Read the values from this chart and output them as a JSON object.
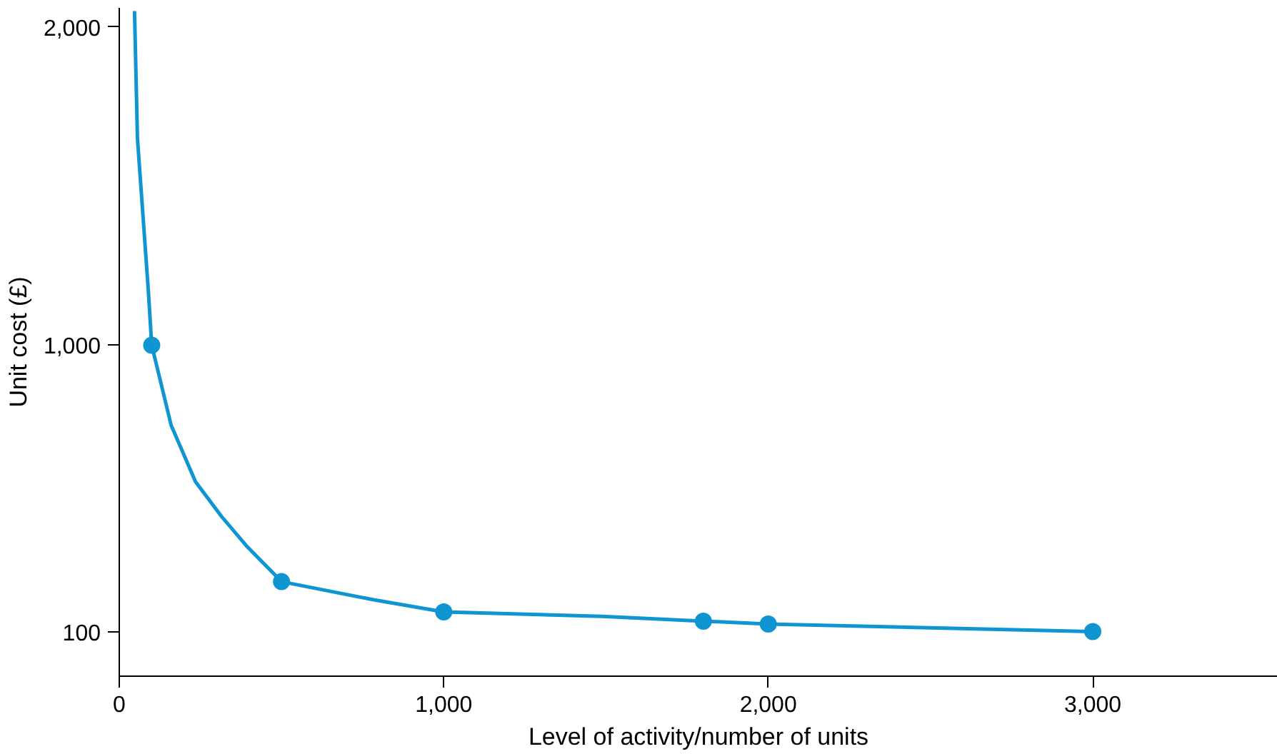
{
  "chart_data": {
    "type": "line",
    "xlabel": "Level of activity/number of units",
    "ylabel": "Unit cost (£)",
    "xlim": [
      0,
      3570
    ],
    "ylim": [
      -40,
      2060
    ],
    "xticks": [
      0,
      {
        "value": 1000,
        "label": "1,000"
      },
      {
        "value": 2000,
        "label": "2,000"
      },
      {
        "value": 3000,
        "label": "3,000"
      }
    ],
    "yticks": [
      100,
      {
        "value": 1000,
        "label": "1,000"
      },
      {
        "value": 2000,
        "label": "2,000"
      }
    ],
    "grid": false,
    "series": [
      {
        "color": "#0e95d2",
        "marker": "none",
        "x": [
          47,
          56,
          89,
          100,
          160,
          235,
          315,
          394,
          500,
          784,
          1000,
          1488,
          1800,
          2000,
          3000
        ],
        "values": [
          2050,
          1650,
          1180,
          1000,
          748,
          571,
          462,
          367,
          257,
          200,
          162,
          148,
          133,
          124,
          100
        ]
      },
      {
        "type": "scatter",
        "color": "#0e95d2",
        "marker": "circle",
        "x": [
          100,
          500,
          1000,
          1800,
          2000,
          3000
        ],
        "values": [
          1000,
          257,
          162,
          133,
          124,
          100
        ]
      }
    ]
  }
}
